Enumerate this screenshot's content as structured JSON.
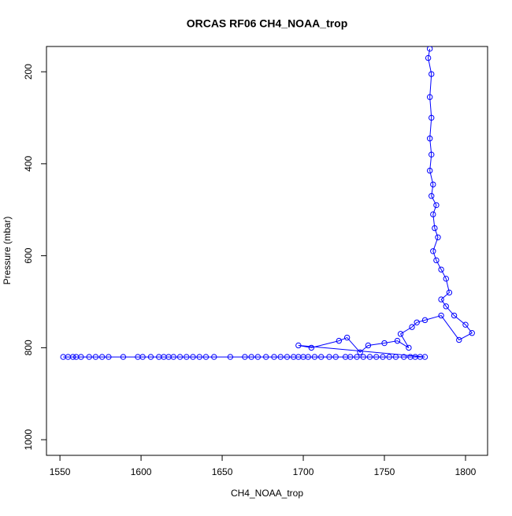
{
  "chart_data": {
    "type": "line",
    "title": "ORCAS RF06 CH4_NOAA_trop",
    "x_label": "CH4_NOAA_trop",
    "y_label": "Pressure (mbar)",
    "xlim": [
      1541.7,
      1813.6
    ],
    "ylim": [
      1034,
      145
    ],
    "xticks": [
      1550,
      1600,
      1650,
      1700,
      1750,
      1800
    ],
    "yticks": [
      200,
      400,
      600,
      800,
      1000
    ],
    "x": [
      1552,
      1555,
      1558,
      1560,
      1563,
      1568,
      1572,
      1576,
      1580,
      1589,
      1598,
      1601,
      1606,
      1611,
      1614,
      1617,
      1620,
      1624,
      1628,
      1632,
      1636,
      1640,
      1645,
      1655,
      1664,
      1668,
      1672,
      1677,
      1682,
      1686,
      1690,
      1694,
      1697,
      1700,
      1703,
      1707,
      1711,
      1716,
      1720,
      1726,
      1729,
      1733,
      1737,
      1741,
      1745,
      1749,
      1753,
      1757,
      1762,
      1766,
      1769,
      1772,
      1775,
      1697,
      1705,
      1722,
      1727,
      1735,
      1740,
      1750,
      1758,
      1765,
      1760,
      1767,
      1770,
      1775,
      1785,
      1796,
      1804,
      1800,
      1793,
      1788,
      1785,
      1790,
      1788,
      1785,
      1782,
      1780,
      1783,
      1781,
      1780,
      1782,
      1779,
      1780,
      1778,
      1779,
      1778,
      1779,
      1778,
      1779,
      1777,
      1778
    ],
    "series": [
      {
        "name": "CH4_NOAA_trop",
        "color": "#0000ff",
        "values": [
          820,
          820,
          820,
          820,
          820,
          820,
          820,
          820,
          820,
          820,
          820,
          820,
          820,
          820,
          820,
          820,
          820,
          820,
          820,
          820,
          820,
          820,
          820,
          820,
          820,
          820,
          820,
          820,
          820,
          820,
          820,
          820,
          820,
          820,
          820,
          820,
          820,
          820,
          820,
          820,
          820,
          820,
          820,
          820,
          820,
          820,
          820,
          820,
          820,
          820,
          820,
          820,
          820,
          795,
          800,
          785,
          778,
          810,
          795,
          790,
          785,
          800,
          770,
          755,
          745,
          740,
          730,
          783,
          768,
          750,
          730,
          710,
          695,
          680,
          650,
          630,
          610,
          590,
          560,
          540,
          510,
          490,
          470,
          445,
          415,
          380,
          345,
          300,
          255,
          205,
          170,
          150
        ]
      }
    ]
  }
}
